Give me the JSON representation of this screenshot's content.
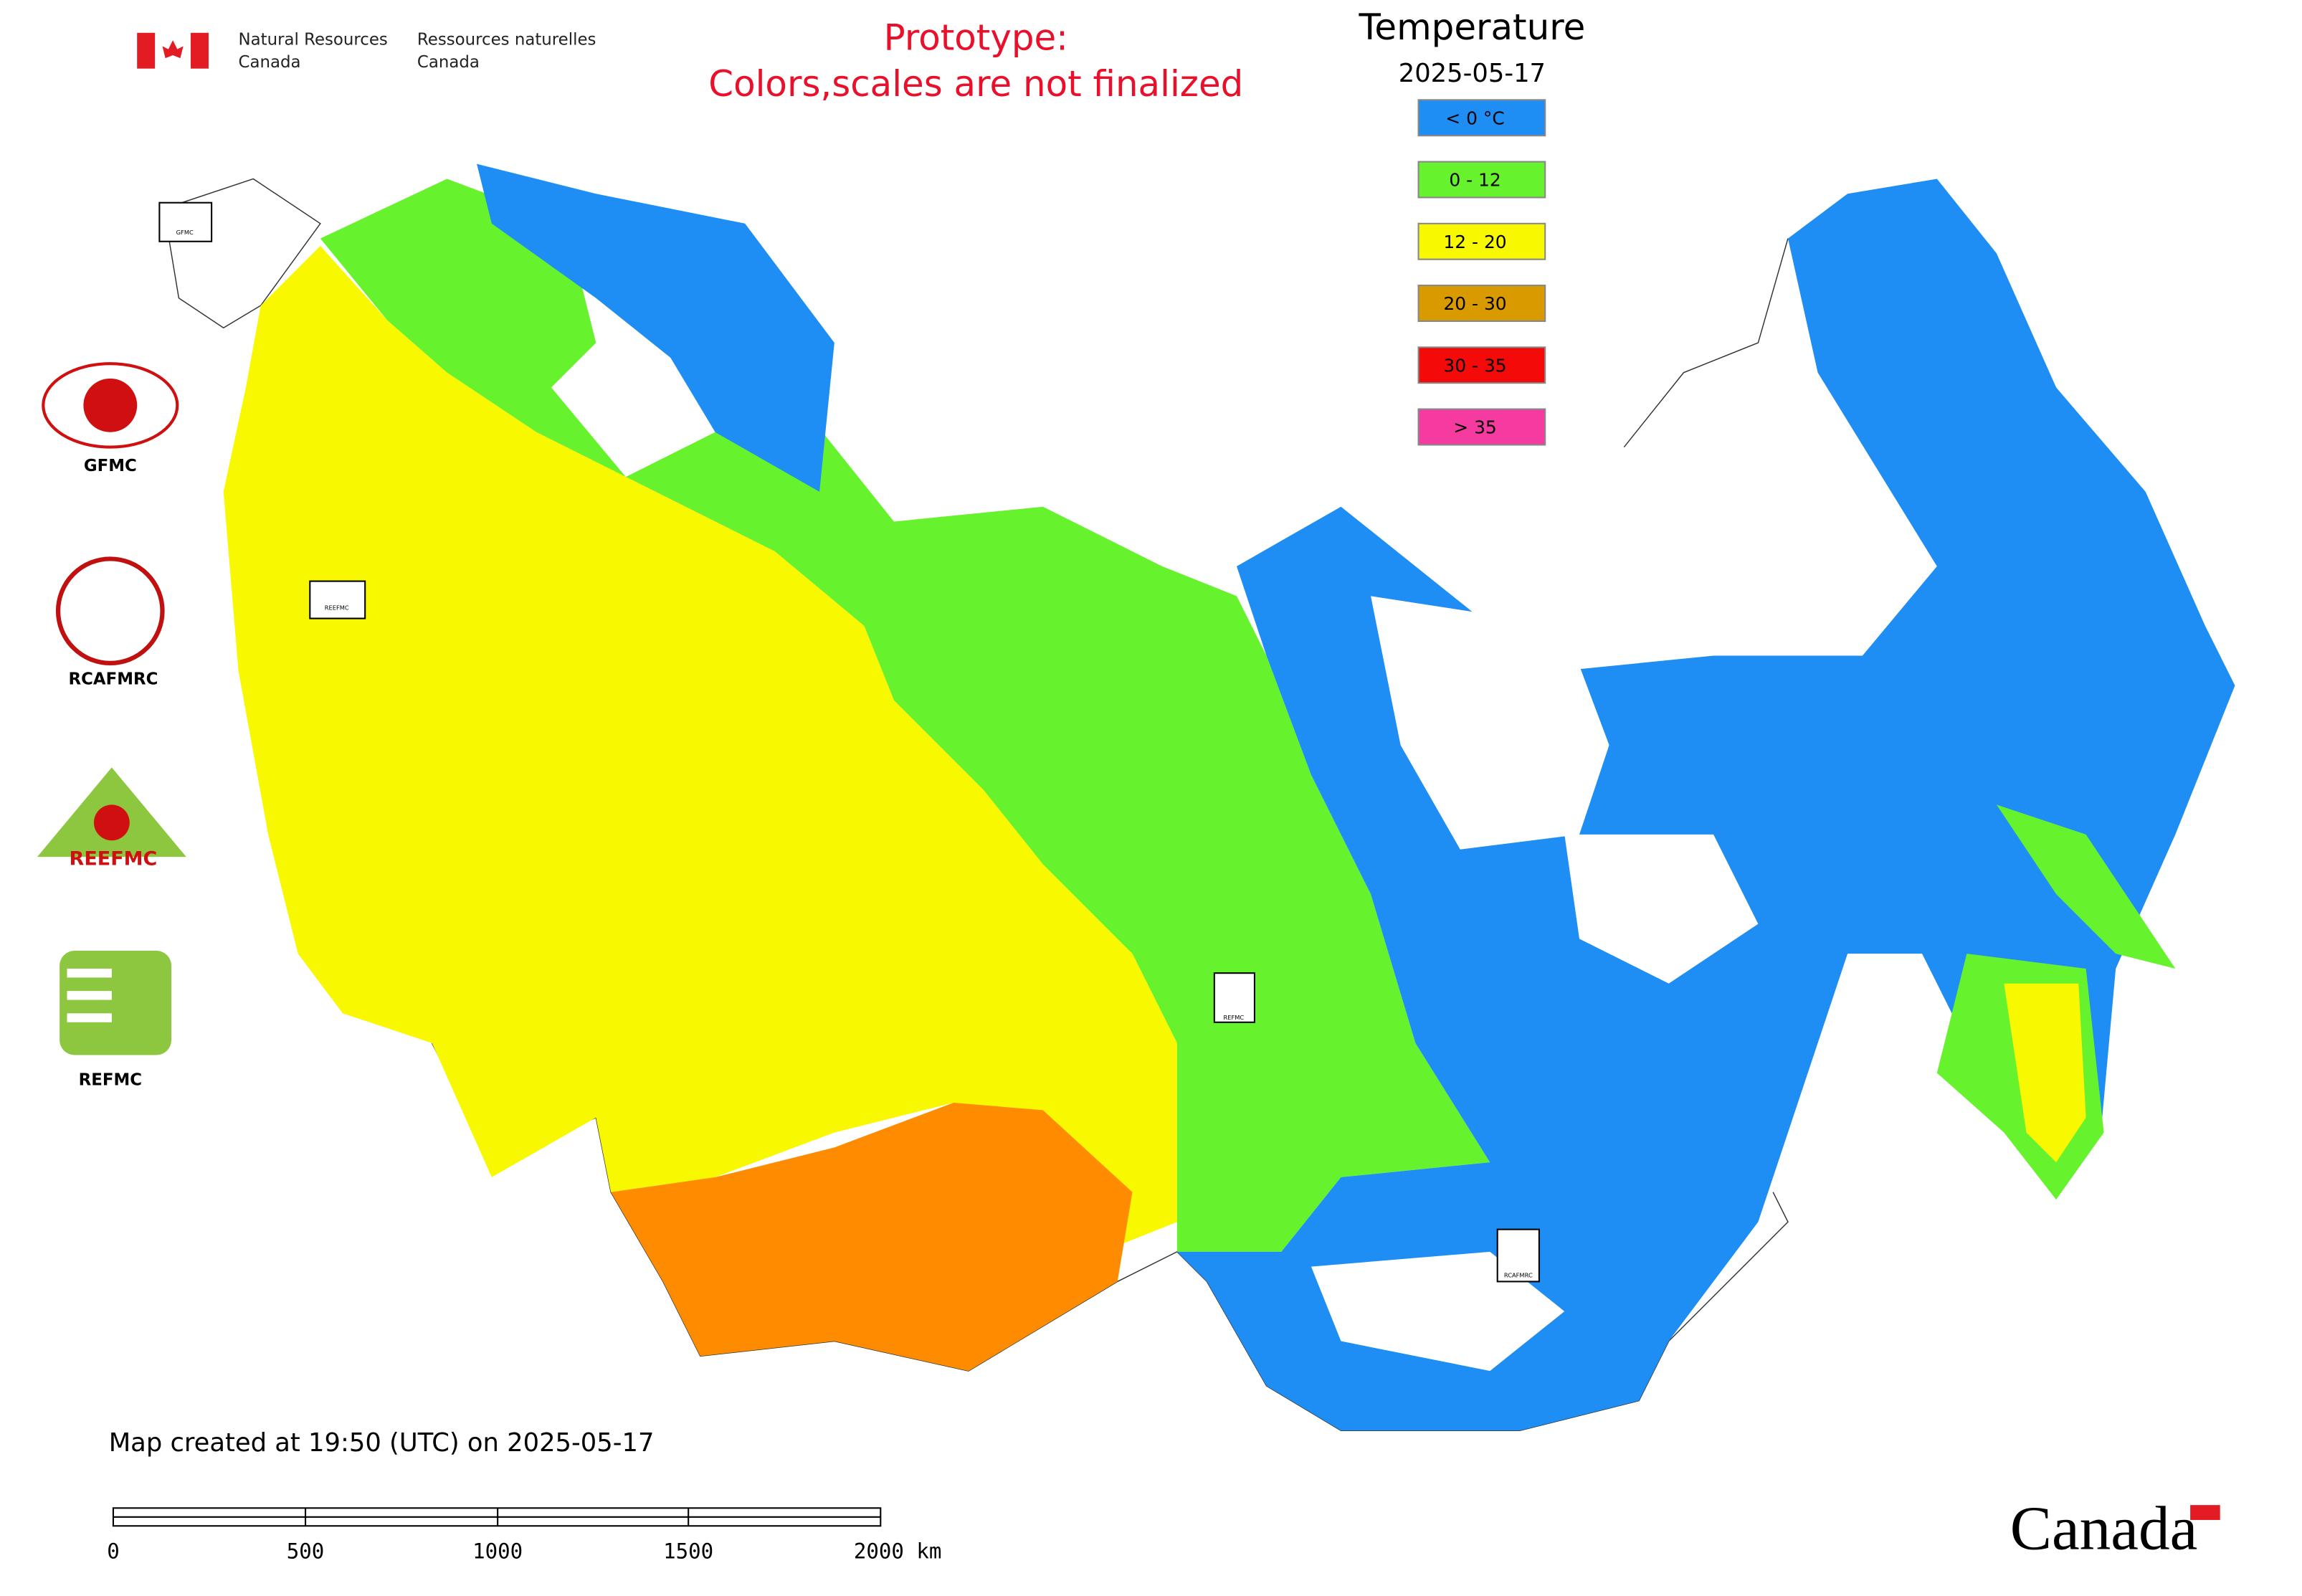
{
  "header": {
    "department_en": [
      "Natural Resources",
      "Canada"
    ],
    "department_fr": [
      "Ressources naturelles",
      "Canada"
    ],
    "notice": [
      "Prototype:",
      "Colors,scales are not finalized"
    ]
  },
  "legend": {
    "title": "Temperature",
    "date": "2025-05-17",
    "items": [
      {
        "label": "< 0 °C",
        "color": "#1e8ef5"
      },
      {
        "label": "0 - 12",
        "color": "#66f22c"
      },
      {
        "label": "12 - 20",
        "color": "#f8f800"
      },
      {
        "label": "20 - 30",
        "color": "#d99a00"
      },
      {
        "label": "30 - 35",
        "color": "#f50a0a"
      },
      {
        "label": "> 35",
        "color": "#f53aa0"
      }
    ]
  },
  "logos": [
    "GFMC",
    "RCAFMRC",
    "REEFMC",
    "REFMC"
  ],
  "map_markers": [
    "GFMC",
    "REEFMC",
    "REFMC",
    "RCAFMRC"
  ],
  "footer": {
    "created": "Map created at 19:50 (UTC) on 2025-05-17",
    "scale_labels": [
      "0",
      "500",
      "1000",
      "1500",
      "2000 km"
    ],
    "wordmark": "Canada"
  }
}
